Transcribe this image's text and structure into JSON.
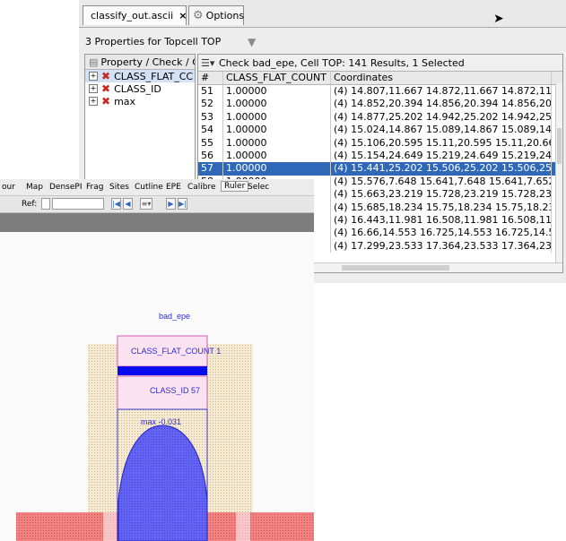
{
  "tabs": [
    {
      "label": "classify_out.ascii",
      "close": "×"
    },
    {
      "label": "Options"
    }
  ],
  "topcell_line": "3 Properties for Topcell TOP",
  "property_pane": {
    "header": "Property / Check / Co",
    "items": [
      "CLASS_FLAT_CC",
      "CLASS_ID",
      "max"
    ]
  },
  "results": {
    "check_line": "Check bad_epe, Cell TOP: 141 Results, 1 Selected",
    "columns": [
      "#",
      "CLASS_FLAT_COUNT",
      "Coordinates"
    ],
    "rows": [
      {
        "n": "51",
        "v": "1.00000",
        "c": "(4) 14.807,11.667 14.872,11.667 14.872,11.671"
      },
      {
        "n": "52",
        "v": "1.00000",
        "c": "(4) 14.852,20.394 14.856,20.394 14.856,20.459"
      },
      {
        "n": "53",
        "v": "1.00000",
        "c": "(4) 14.877,25.202 14.942,25.202 14.942,25.206"
      },
      {
        "n": "54",
        "v": "1.00000",
        "c": "(4) 15.024,14.867 15.089,14.867 15.089,14.871"
      },
      {
        "n": "55",
        "v": "1.00000",
        "c": "(4) 15.106,20.595 15.11,20.595 15.11,20.66 15.1"
      },
      {
        "n": "56",
        "v": "1.00000",
        "c": "(4) 15.154,24.649 15.219,24.649 15.219,24.653"
      },
      {
        "n": "57",
        "v": "1.00000",
        "c": "(4) 15.441,25.202 15.506,25.202 15.506,25.206"
      },
      {
        "n": "58",
        "v": "1.00000",
        "c": "(4) 15.576,7.648 15.641,7.648 15.641,7.652 15.5"
      },
      {
        "n": "59",
        "v": "1.00000",
        "c": "(4) 15.663,23.219 15.728,23.219 15.728,23.223"
      },
      {
        "n": "60",
        "v": "1.00000",
        "c": "(4) 15.685,18.234 15.75,18.234 15.75,18.238 15"
      },
      {
        "n": "61",
        "v": "1.00000",
        "c": "(4) 16.443,11.981 16.508,11.981 16.508,11.985"
      },
      {
        "n": "62",
        "v": "1.00000",
        "c": "(4) 16.66,14.553 16.725,14.553 16.725,14.557 1"
      },
      {
        "n": "63",
        "v": "1.00000",
        "c": "(4) 17.299,23.533 17.364,23.533 17.364,23.537"
      }
    ],
    "selected_row": "57"
  },
  "viewer": {
    "menu": [
      "our",
      "Map",
      "DensePI",
      "Frag",
      "Sites",
      "Cutline",
      "EPE",
      "Calibre",
      "Ruler",
      "Selec"
    ],
    "ref_label": "Ref:",
    "canvas_labels": {
      "title": "bad_epe",
      "flat_count": "CLASS_FLAT_COUNT 1",
      "class_id": "CLASS_ID 57",
      "max": "max -0.031"
    }
  },
  "colors": {
    "selection": "#2f68b8",
    "error_x": "#c8281e",
    "marker_blue": "#0a0af0",
    "shape_blue": "#5a5af2",
    "red_layer": "#f07a7a",
    "tan_layer": "#f2e3c4"
  }
}
